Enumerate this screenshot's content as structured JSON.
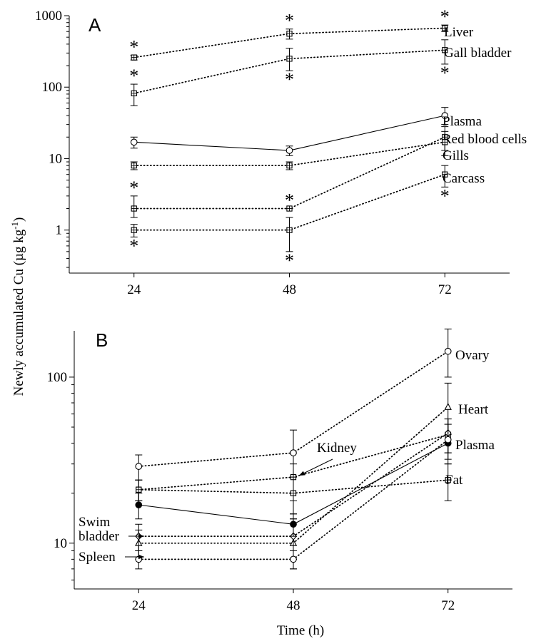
{
  "ylabel_main": "Newly accumulated Cu (µg kg",
  "ylabel_sup": "-1",
  "ylabel_close": ")",
  "chart_data": [
    {
      "panel": "A",
      "type": "line",
      "x": [
        24,
        48,
        72
      ],
      "xlabel": "",
      "ylabel": "Newly accumulated Cu (µg kg-1)",
      "yscale": "log",
      "xlim": [
        14,
        82
      ],
      "ylim": [
        0.25,
        1000
      ],
      "xticks": [
        "24",
        "48",
        "72"
      ],
      "yticks": [
        {
          "value": 1,
          "label": "1"
        },
        {
          "value": 10,
          "label": "10"
        },
        {
          "value": 100,
          "label": "100"
        },
        {
          "value": 1000,
          "label": "1000"
        }
      ],
      "series": [
        {
          "name": "Liver",
          "marker": "square",
          "dash": "dotted",
          "values": [
            260,
            560,
            670
          ],
          "err_low": [
            240,
            470,
            600
          ],
          "err_high": [
            280,
            650,
            740
          ],
          "stars": [
            "above",
            "above",
            "above"
          ]
        },
        {
          "name": "Gall bladder",
          "marker": "square",
          "dash": "dotted",
          "values": [
            82,
            250,
            330
          ],
          "err_low": [
            55,
            170,
            210
          ],
          "err_high": [
            110,
            350,
            460
          ],
          "stars": [
            "above",
            "below",
            "below"
          ]
        },
        {
          "name": "Plasma",
          "marker": "circle",
          "dash": "solid",
          "values": [
            17,
            13,
            40
          ],
          "err_low": [
            14,
            11,
            30
          ],
          "err_high": [
            20,
            15,
            52
          ],
          "stars": [
            null,
            null,
            null
          ]
        },
        {
          "name": "Red blood cells",
          "marker": "square",
          "dash": "dotted",
          "values": [
            2,
            2,
            20
          ],
          "err_low": [
            1.5,
            2,
            13
          ],
          "err_high": [
            3,
            2,
            28
          ],
          "stars": [
            "above",
            "above",
            null
          ]
        },
        {
          "name": "Gills",
          "marker": "square",
          "dash": "dotted",
          "values": [
            8,
            8,
            17
          ],
          "err_low": [
            7,
            7,
            11
          ],
          "err_high": [
            9,
            9,
            24
          ],
          "stars": [
            null,
            null,
            null
          ]
        },
        {
          "name": "Carcass",
          "marker": "square",
          "dash": "dotted",
          "values": [
            1,
            1,
            6
          ],
          "err_low": [
            0.8,
            0.5,
            4
          ],
          "err_high": [
            1.2,
            1.5,
            8
          ],
          "stars": [
            "below",
            "below",
            "below"
          ]
        }
      ],
      "star_symbol": "*"
    },
    {
      "panel": "B",
      "type": "line",
      "x": [
        24,
        48,
        72
      ],
      "xlabel": "Time (h)",
      "ylabel": "Newly accumulated Cu (µg kg-1)",
      "yscale": "log",
      "xlim": [
        14,
        82
      ],
      "ylim": [
        5.3,
        190
      ],
      "xticks": [
        "24",
        "48",
        "72"
      ],
      "yticks": [
        {
          "value": 10,
          "label": "10"
        },
        {
          "value": 100,
          "label": "100"
        }
      ],
      "series": [
        {
          "name": "Ovary",
          "marker": "circle",
          "dash": "dotted",
          "values": [
            29,
            35,
            143
          ],
          "err_low": [
            24,
            25,
            100
          ],
          "err_high": [
            34,
            48,
            195
          ]
        },
        {
          "name": "Heart",
          "marker": "triangle",
          "dash": "dotted",
          "values": [
            10,
            10,
            66
          ],
          "err_low": [
            8,
            7,
            45
          ],
          "err_high": [
            12,
            14,
            92
          ]
        },
        {
          "name": "Kidney",
          "marker": "square",
          "dash": "dotted",
          "values": [
            21,
            25,
            45
          ],
          "err_low": [
            18,
            18,
            35
          ],
          "err_high": [
            24,
            30,
            56
          ]
        },
        {
          "name": "Swim bladder",
          "marker": "diamond",
          "dash": "dotted",
          "values": [
            11,
            11,
            46
          ],
          "err_low": [
            9,
            8,
            35
          ],
          "err_high": [
            13,
            14,
            56
          ]
        },
        {
          "name": "Plasma",
          "marker": "filled-circle",
          "dash": "solid",
          "values": [
            17,
            13,
            40
          ],
          "err_low": [
            14,
            11,
            30
          ],
          "err_high": [
            20,
            15,
            52
          ]
        },
        {
          "name": "Fat",
          "marker": "square",
          "dash": "dotted",
          "values": [
            21,
            20,
            24
          ],
          "err_low": [
            18,
            15,
            18
          ],
          "err_high": [
            24,
            25,
            30
          ]
        },
        {
          "name": "Spleen",
          "marker": "circle",
          "dash": "dotted",
          "values": [
            8,
            8,
            42
          ],
          "err_low": [
            7,
            7,
            32
          ],
          "err_high": [
            9,
            9,
            52
          ]
        }
      ]
    }
  ]
}
